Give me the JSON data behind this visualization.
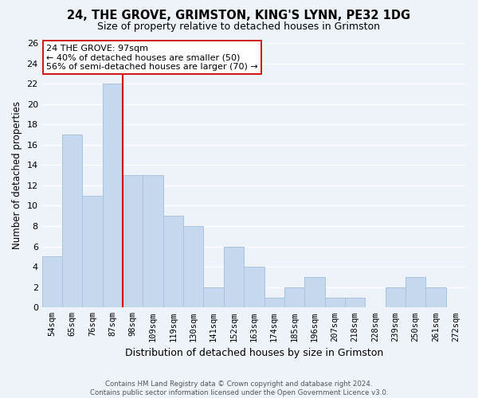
{
  "title1": "24, THE GROVE, GRIMSTON, KING'S LYNN, PE32 1DG",
  "title2": "Size of property relative to detached houses in Grimston",
  "xlabel": "Distribution of detached houses by size in Grimston",
  "ylabel": "Number of detached properties",
  "bin_labels": [
    "54sqm",
    "65sqm",
    "76sqm",
    "87sqm",
    "98sqm",
    "109sqm",
    "119sqm",
    "130sqm",
    "141sqm",
    "152sqm",
    "163sqm",
    "174sqm",
    "185sqm",
    "196sqm",
    "207sqm",
    "218sqm",
    "228sqm",
    "239sqm",
    "250sqm",
    "261sqm",
    "272sqm"
  ],
  "bar_heights": [
    5,
    17,
    11,
    22,
    13,
    13,
    9,
    8,
    2,
    6,
    4,
    1,
    2,
    3,
    1,
    1,
    0,
    2,
    3,
    2,
    0
  ],
  "bar_color": "#c5d8ed",
  "bar_edge_color": "#a8c4de",
  "vline_color": "#cc0000",
  "annotation_title": "24 THE GROVE: 97sqm",
  "annotation_line1": "← 40% of detached houses are smaller (50)",
  "annotation_line2": "56% of semi-detached houses are larger (70) →",
  "annotation_box_color": "#ffffff",
  "annotation_box_edge": "#cc0000",
  "ylim": [
    0,
    26
  ],
  "yticks": [
    0,
    2,
    4,
    6,
    8,
    10,
    12,
    14,
    16,
    18,
    20,
    22,
    24,
    26
  ],
  "footer1": "Contains HM Land Registry data © Crown copyright and database right 2024.",
  "footer2": "Contains public sector information licensed under the Open Government Licence v3.0.",
  "bg_color": "#eef2f9"
}
